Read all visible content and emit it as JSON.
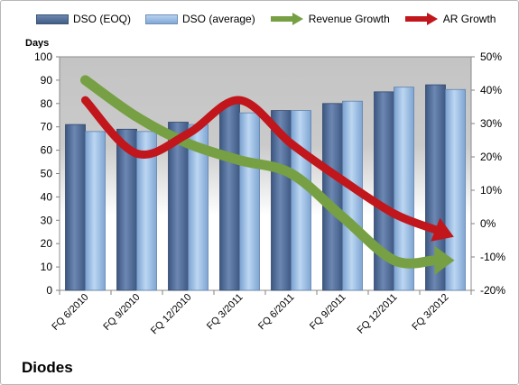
{
  "chart_data": {
    "type": "bar",
    "title": "Diodes",
    "ylabel": "Days",
    "ylim": [
      0,
      100
    ],
    "yticks": [
      0,
      10,
      20,
      30,
      40,
      50,
      60,
      70,
      80,
      90,
      100
    ],
    "y2lim": [
      -20,
      50
    ],
    "y2ticks": [
      "-20%",
      "-10%",
      "0%",
      "10%",
      "20%",
      "30%",
      "40%",
      "50%"
    ],
    "y2tick_values": [
      -20,
      -10,
      0,
      10,
      20,
      30,
      40,
      50
    ],
    "categories": [
      "FQ 6/2010",
      "FQ 9/2010",
      "FQ 12/2010",
      "FQ 3/2011",
      "FQ 6/2011",
      "FQ 9/2011",
      "FQ 12/2011",
      "FQ 3/2012"
    ],
    "series": [
      {
        "name": "DSO (EOQ)",
        "type": "bar",
        "axis": "left",
        "color": "#4f6b94",
        "values": [
          71,
          69,
          72,
          80,
          77,
          80,
          85,
          88
        ]
      },
      {
        "name": "DSO (average)",
        "type": "bar",
        "axis": "left",
        "color": "#8fb3dc",
        "values": [
          68,
          68,
          71,
          76,
          77,
          81,
          87,
          86
        ]
      },
      {
        "name": "Revenue Growth",
        "type": "line",
        "axis": "right",
        "color": "#77a044",
        "values": [
          43,
          32,
          24,
          19,
          15,
          2,
          -11,
          -11
        ]
      },
      {
        "name": "AR Growth",
        "type": "line",
        "axis": "right",
        "color": "#c0161c",
        "values": [
          37,
          21,
          27,
          37,
          24,
          13,
          3,
          -3
        ]
      }
    ],
    "grid": false
  }
}
